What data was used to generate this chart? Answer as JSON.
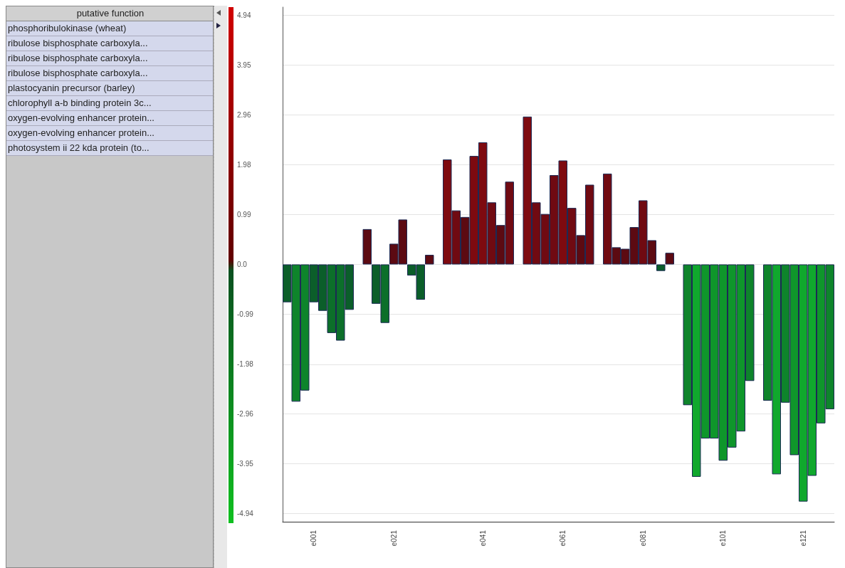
{
  "chart_data": {
    "type": "bar",
    "categories": [
      null,
      null,
      null,
      "e001",
      null,
      null,
      null,
      null,
      null,
      null,
      null,
      null,
      "e021",
      null,
      null,
      null,
      null,
      null,
      null,
      null,
      null,
      null,
      "e041",
      null,
      null,
      null,
      null,
      null,
      null,
      null,
      null,
      "e061",
      null,
      null,
      null,
      null,
      null,
      null,
      null,
      null,
      "e081",
      null,
      null,
      null,
      null,
      null,
      null,
      null,
      null,
      "e101",
      null,
      null,
      null,
      null,
      null,
      null,
      null,
      null,
      "e121",
      null,
      null,
      null
    ],
    "values": [
      -0.75,
      -2.72,
      -2.5,
      -0.75,
      -0.92,
      -1.36,
      -1.51,
      -0.9,
      null,
      0.7,
      -0.78,
      -1.16,
      0.41,
      0.89,
      -0.22,
      -0.7,
      0.19,
      null,
      2.08,
      1.07,
      0.94,
      2.15,
      2.42,
      1.23,
      0.78,
      1.64,
      null,
      2.93,
      1.23,
      1.0,
      1.77,
      2.06,
      1.12,
      0.58,
      1.58,
      null,
      1.8,
      0.34,
      0.31,
      0.74,
      1.27,
      0.48,
      -0.13,
      0.23,
      null,
      -2.79,
      -4.21,
      -3.45,
      -3.45,
      -3.89,
      -3.63,
      -3.31,
      -2.31,
      null,
      -2.7,
      -4.16,
      -2.74,
      -3.78,
      -4.7,
      -4.19,
      -3.15,
      -2.87
    ],
    "colors": [
      "#0b5e2a",
      "#0e842b",
      "#0e842b",
      "#0b5e2a",
      "#0b5e2a",
      "#0c6f2a",
      "#0c6f2a",
      "#0b5e2a",
      null,
      "#5c0a12",
      "#0b5e2a",
      "#0c6f2a",
      "#5c0a12",
      "#5c0a12",
      "#0b5e2a",
      "#0b5e2a",
      "#5c0a12",
      null,
      "#7e0a10",
      "#700a12",
      "#5c0a12",
      "#7e0a10",
      "#7e0a10",
      "#700a12",
      "#5c0a12",
      "#700a12",
      null,
      "#7e0a10",
      "#700a12",
      "#700a12",
      "#700a12",
      "#7e0a10",
      "#700a12",
      "#5c0a12",
      "#700a12",
      null,
      "#700a12",
      "#5c0a12",
      "#5c0a12",
      "#5c0a12",
      "#700a12",
      "#5c0a12",
      "#0b5e2a",
      "#5c0a12",
      null,
      "#0e842b",
      "#10a82d",
      "#0f962b",
      "#0f962b",
      "#0f962b",
      "#0f962b",
      "#0f962b",
      "#0e842b",
      null,
      "#0e842b",
      "#10a82d",
      "#0e842b",
      "#0f962b",
      "#10a82d",
      "#10a82d",
      "#0f962b",
      "#0e842b"
    ],
    "ylim": [
      -5.1,
      5.1
    ],
    "yticks": [
      -4.94,
      -3.95,
      -2.96,
      -1.98,
      -0.99,
      {
        "value": 0,
        "label": "0.0"
      },
      0.99,
      1.98,
      2.96,
      3.95,
      4.94
    ],
    "grid": "y",
    "annotations": [
      "putative function",
      "phosphoribulokinase (wheat)",
      "ribulose bisphosphate carboxyla...",
      "ribulose bisphosphate carboxyla...",
      "ribulose bisphosphate carboxyla...",
      "plastocyanin precursor (barley)",
      "chlorophyll a-b binding protein 3c...",
      "oxygen-evolving enhancer protein...",
      "oxygen-evolving enhancer protein...",
      "photosystem ii 22 kda protein (to..."
    ]
  }
}
